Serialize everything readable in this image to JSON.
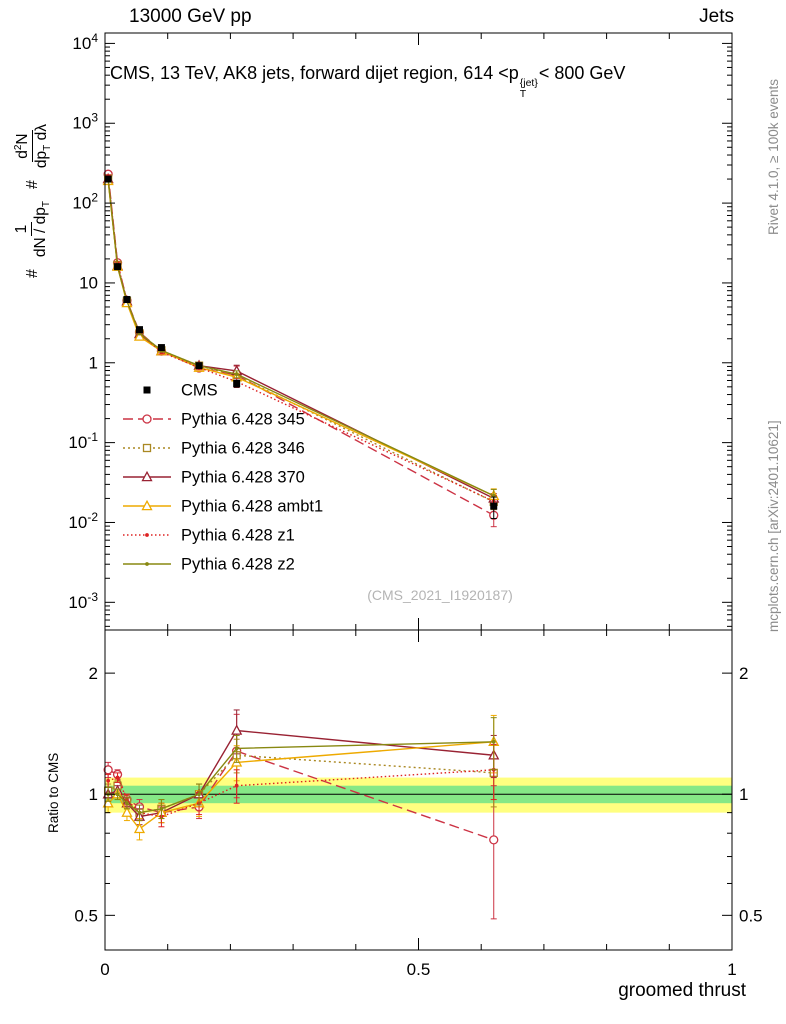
{
  "labels": {
    "top_left": "13000 GeV pp",
    "top_right": "Jets",
    "title": {
      "pre": "CMS, 13 TeV, AK8 jets, forward dijet region, 614 <p",
      "sup": "{jet}",
      "sub": "T",
      "post": "< 800 GeV"
    },
    "ylabel": {
      "hash1": "#",
      "f1num": "1",
      "f1den": "dN / dp",
      "f1densub": "T",
      "hash2": "#",
      "f2numpre": "d",
      "f2numsup": "2",
      "f2numpost": "N",
      "f2denpre": "dp",
      "f2densub": "T",
      "f2denpost": " dλ"
    },
    "rivet": "Rivet 4.1.0, ≥ 100k events",
    "mcplots": "mcplots.cern.ch [arXiv:2401.10621]",
    "watermark": "(CMS_2021_I1920187)",
    "ratio_ylabel": "Ratio to CMS"
  },
  "chart_data": {
    "type": "line",
    "xlabel": "groomed thrust",
    "x": [
      0.005,
      0.02,
      0.035,
      0.055,
      0.09,
      0.15,
      0.21,
      0.62
    ],
    "main_axis": {
      "scale": "log",
      "plot_min": 0.00045,
      "plot_max": 13500,
      "decades": [
        -3,
        -2,
        -1,
        0,
        1,
        2,
        3,
        4
      ],
      "xmin": 0,
      "xmax": 1,
      "xticks": [
        0,
        0.5,
        1
      ]
    },
    "ratio_axis": {
      "scale": "log",
      "plot_min": 0.41,
      "plot_max": 2.56,
      "ticks": [
        0.5,
        1,
        2
      ],
      "minor": [
        0.6,
        0.7,
        0.8,
        0.9
      ]
    },
    "bands": {
      "yellow": {
        "lo": 0.9,
        "hi": 1.1,
        "color": "#ffff80"
      },
      "green": {
        "lo": 0.95,
        "hi": 1.05,
        "color": "#86e886"
      }
    },
    "series": [
      {
        "name": "cms",
        "legend": "CMS",
        "color": "#000000",
        "marker": "square-filled",
        "line": "none",
        "values": [
          200,
          16,
          6.2,
          2.6,
          1.55,
          0.92,
          0.55,
          0.016
        ],
        "ratio": [
          1,
          1,
          1,
          1,
          1,
          1,
          1,
          1
        ],
        "rel_err": [
          0.05,
          0.04,
          0.04,
          0.05,
          0.05,
          0.06,
          0.1,
          0.3
        ],
        "show_in_ratio": false
      },
      {
        "name": "py345",
        "legend": "Pythia 6.428 345",
        "color": "#cc3344",
        "marker": "circle-open",
        "line": "dashed",
        "values": [
          230,
          17.9,
          6.0,
          2.42,
          1.4,
          0.86,
          0.7,
          0.0123
        ],
        "ratio": [
          1.15,
          1.12,
          0.97,
          0.93,
          0.9,
          0.93,
          1.28,
          0.77
        ],
        "rel_err": [
          0.05,
          0.03,
          0.03,
          0.04,
          0.05,
          0.06,
          0.3,
          0.28
        ]
      },
      {
        "name": "py346",
        "legend": "Pythia 6.428 346",
        "color": "#aa8822",
        "marker": "square-open",
        "line": "dotted",
        "values": [
          204,
          16.8,
          5.95,
          2.34,
          1.43,
          0.92,
          0.69,
          0.0181
        ],
        "ratio": [
          1.02,
          1.05,
          0.96,
          0.9,
          0.92,
          1.0,
          1.25,
          1.13
        ],
        "rel_err": [
          0.04,
          0.03,
          0.03,
          0.04,
          0.05,
          0.06,
          0.12,
          0.2
        ]
      },
      {
        "name": "py370",
        "legend": "Pythia 6.428 370",
        "color": "#992233",
        "marker": "triangle-open",
        "line": "solid",
        "values": [
          200,
          16.3,
          5.9,
          2.29,
          1.4,
          0.92,
          0.79,
          0.02
        ],
        "ratio": [
          1.0,
          1.02,
          0.95,
          0.88,
          0.9,
          1.0,
          1.44,
          1.25
        ],
        "rel_err": [
          0.04,
          0.03,
          0.03,
          0.04,
          0.05,
          0.06,
          0.18,
          0.15
        ]
      },
      {
        "name": "ambt1",
        "legend": "Pythia 6.428 ambt1",
        "color": "#eeaa00",
        "marker": "triangle-open",
        "line": "solid",
        "values": [
          190,
          16,
          5.6,
          2.13,
          1.4,
          0.87,
          0.66,
          0.0216
        ],
        "ratio": [
          0.95,
          1.0,
          0.9,
          0.82,
          0.9,
          0.95,
          1.2,
          1.35
        ],
        "rel_err": [
          0.05,
          0.03,
          0.04,
          0.05,
          0.05,
          0.07,
          0.12,
          0.22
        ]
      },
      {
        "name": "z1",
        "legend": "Pythia 6.428 z1",
        "color": "#dd2222",
        "marker": "dot",
        "line": "fine-dotted",
        "values": [
          216,
          17.6,
          6.0,
          2.34,
          1.36,
          0.87,
          0.58,
          0.0184
        ],
        "ratio": [
          1.08,
          1.1,
          0.97,
          0.9,
          0.88,
          0.95,
          1.05,
          1.15
        ],
        "rel_err": [
          0.04,
          0.03,
          0.03,
          0.04,
          0.05,
          0.06,
          0.1,
          0.18
        ]
      },
      {
        "name": "z2",
        "legend": "Pythia 6.428 z2",
        "color": "#888811",
        "marker": "dot",
        "line": "solid",
        "values": [
          200,
          16,
          5.9,
          2.34,
          1.43,
          0.92,
          0.72,
          0.0216
        ],
        "ratio": [
          1.0,
          1.0,
          0.95,
          0.9,
          0.92,
          1.0,
          1.3,
          1.35
        ],
        "rel_err": [
          0.04,
          0.03,
          0.03,
          0.04,
          0.05,
          0.06,
          0.1,
          0.2
        ]
      }
    ],
    "watermark": "(CMS_2021_I1920187)"
  }
}
